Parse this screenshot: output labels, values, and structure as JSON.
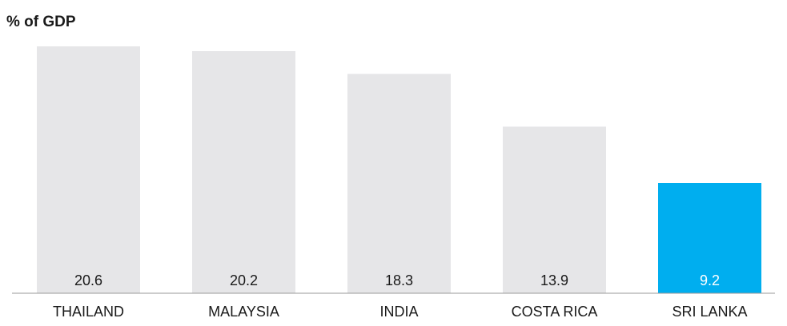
{
  "chart_data": {
    "type": "bar",
    "title": "",
    "ylabel": "% of GDP",
    "xlabel": "",
    "categories": [
      "THAILAND",
      "MALAYSIA",
      "INDIA",
      "COSTA RICA",
      "SRI LANKA"
    ],
    "values": [
      20.6,
      20.2,
      18.3,
      13.9,
      9.2
    ],
    "value_labels": [
      "20.6",
      "20.2",
      "18.3",
      "13.9",
      "9.2"
    ],
    "ylim": [
      0,
      21.5
    ],
    "grid": false,
    "legend": "none",
    "colors": {
      "default_bar": "#e6e6e8",
      "highlight_bar": "#00aeef",
      "default_label": "#1a1a1a",
      "highlight_label": "#ffffff",
      "axis": "#999999"
    },
    "highlight_index": 4
  }
}
